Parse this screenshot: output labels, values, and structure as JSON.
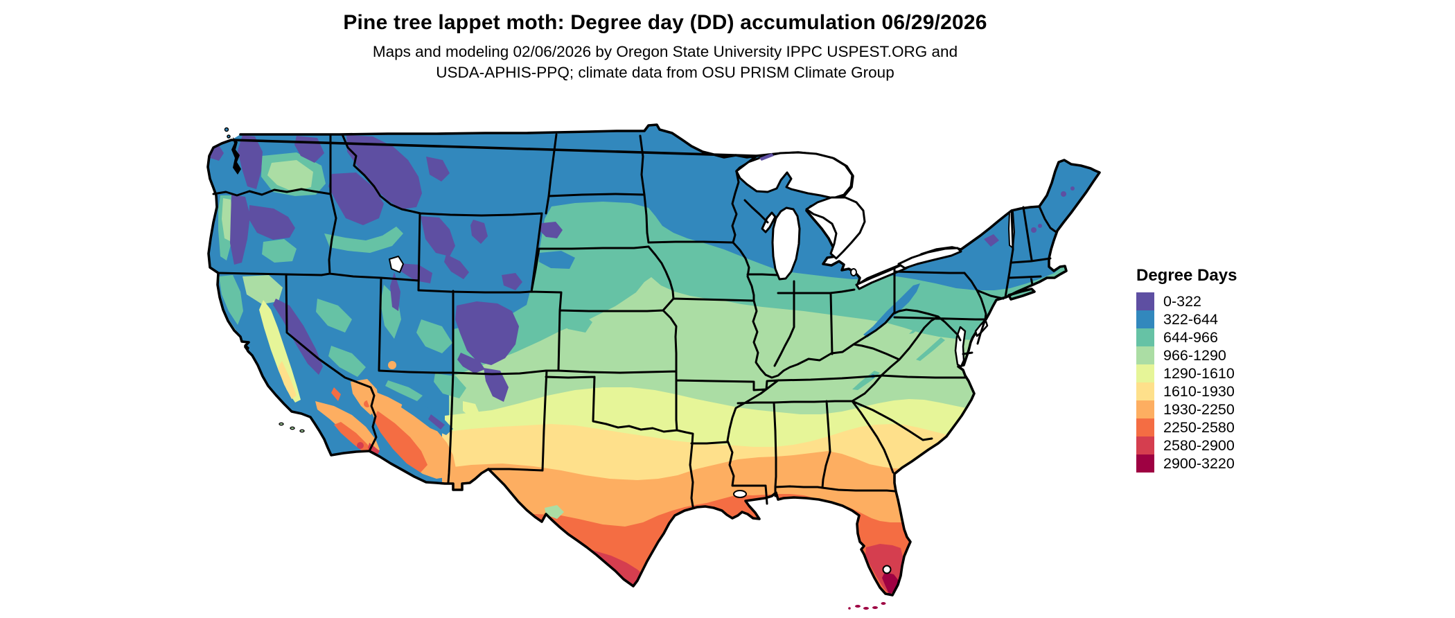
{
  "page": {
    "background": "#ffffff"
  },
  "header": {
    "title": "Pine tree lappet moth: Degree day (DD) accumulation 06/29/2026",
    "subtitle_line1": "Maps and modeling 02/06/2026 by Oregon State University IPPC USPEST.ORG and",
    "subtitle_line2": "USDA-APHIS-PPQ; climate data from OSU PRISM Climate Group"
  },
  "legend": {
    "title": "Degree Days",
    "classes": [
      {
        "label": "0-322",
        "color": "#5e4fa2"
      },
      {
        "label": "322-644",
        "color": "#3288bd"
      },
      {
        "label": "644-966",
        "color": "#66c2a5"
      },
      {
        "label": "966-1290",
        "color": "#abdda4"
      },
      {
        "label": "1290-1610",
        "color": "#e6f598"
      },
      {
        "label": "1610-1930",
        "color": "#fee08b"
      },
      {
        "label": "1930-2250",
        "color": "#fdae61"
      },
      {
        "label": "2250-2580",
        "color": "#f46d43"
      },
      {
        "label": "2580-2900",
        "color": "#d53e4f"
      },
      {
        "label": "2900-3220",
        "color": "#9e0142"
      }
    ]
  },
  "map": {
    "border_color": "#000000",
    "water_color": "#ffffff"
  }
}
